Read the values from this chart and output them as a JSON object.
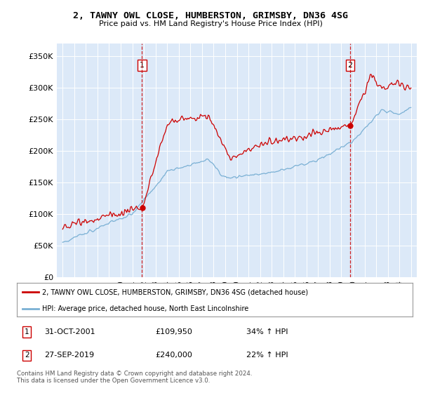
{
  "title": "2, TAWNY OWL CLOSE, HUMBERSTON, GRIMSBY, DN36 4SG",
  "subtitle": "Price paid vs. HM Land Registry's House Price Index (HPI)",
  "legend_label_red": "2, TAWNY OWL CLOSE, HUMBERSTON, GRIMSBY, DN36 4SG (detached house)",
  "legend_label_blue": "HPI: Average price, detached house, North East Lincolnshire",
  "sale1_date": "31-OCT-2001",
  "sale1_price": "£109,950",
  "sale1_hpi": "34% ↑ HPI",
  "sale2_date": "27-SEP-2019",
  "sale2_price": "£240,000",
  "sale2_hpi": "22% ↑ HPI",
  "footer": "Contains HM Land Registry data © Crown copyright and database right 2024.\nThis data is licensed under the Open Government Licence v3.0.",
  "ylim": [
    0,
    370000
  ],
  "yticks": [
    0,
    50000,
    100000,
    150000,
    200000,
    250000,
    300000,
    350000
  ],
  "ytick_labels": [
    "£0",
    "£50K",
    "£100K",
    "£150K",
    "£200K",
    "£250K",
    "£300K",
    "£350K"
  ],
  "bg_color": "#dce9f8",
  "red_color": "#cc0000",
  "blue_color": "#7ab0d4",
  "vline_color": "#cc0000",
  "grid_color": "#ffffff",
  "sale1_x": 2001.83,
  "sale1_y": 109950,
  "sale2_x": 2019.75,
  "sale2_y": 240000,
  "xlim_min": 1994.5,
  "xlim_max": 2025.5
}
